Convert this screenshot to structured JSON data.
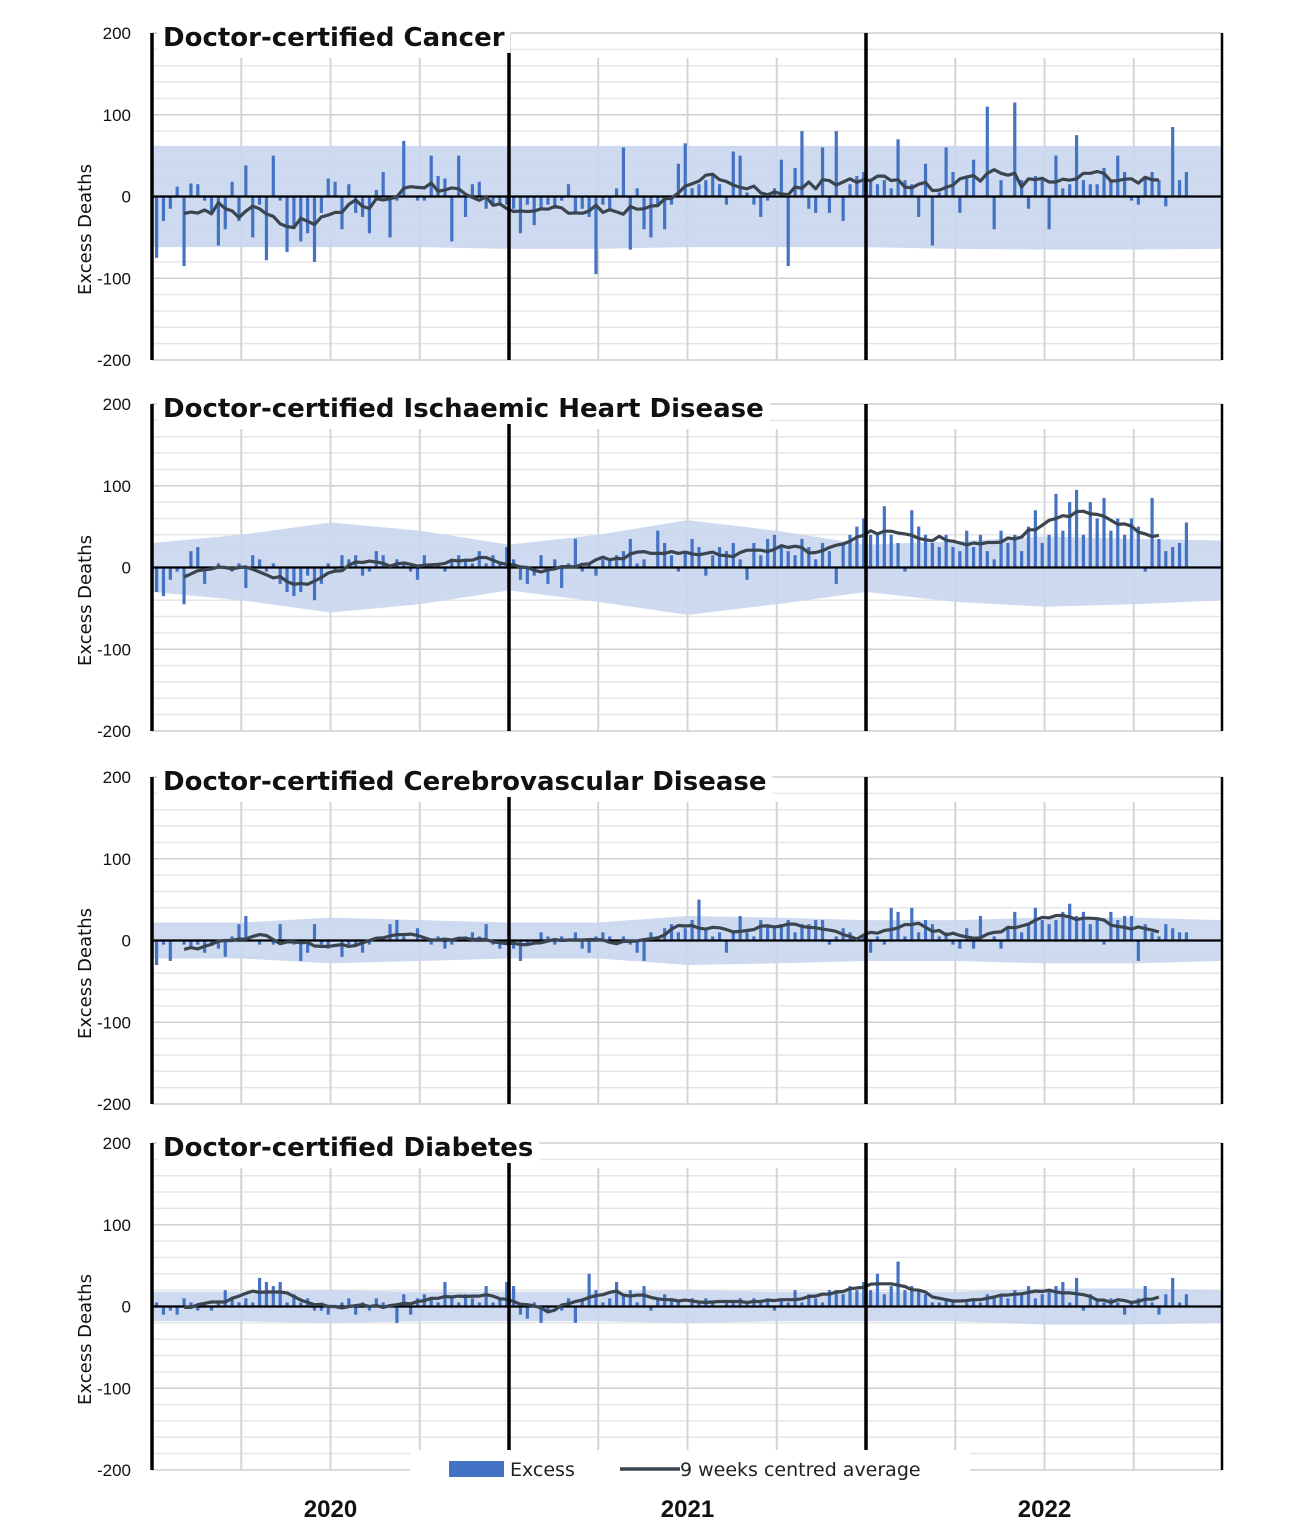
{
  "legend": {
    "excess_label": "Excess",
    "average_label": "9 weeks centred average",
    "placement": "bottom"
  },
  "colors": {
    "excess": "#4472C4",
    "average": "#3A4550",
    "band": "#C9D6EE",
    "grid": "#D9D9D9",
    "axis": "#000000"
  },
  "chart_data": [
    {
      "type": "bar",
      "title": "Doctor-certified Cancer",
      "ylabel": "Excess Deaths",
      "ylim": [
        -200,
        200
      ],
      "yticks": [
        "200",
        "100",
        "0",
        "-100",
        "-200"
      ],
      "x_tick_labels": [
        "2020",
        "2021",
        "2022"
      ],
      "grid": true,
      "series": [
        {
          "name": "Excess",
          "values_by_year": {
            "2020": [
              -75,
              -30,
              -15,
              12,
              -85,
              16,
              15,
              -5,
              -20,
              -60,
              -40,
              18,
              -30,
              38,
              -50,
              -10,
              -78,
              50,
              -5,
              -68,
              -40,
              -55,
              -45,
              -80,
              -20,
              22,
              18,
              -40,
              15,
              -20,
              -25,
              -45,
              8,
              30,
              -50,
              -5,
              68,
              0,
              -5,
              -5,
              50,
              25,
              22,
              -55,
              50,
              -25,
              15,
              18,
              -15,
              -10,
              -10,
              -10
            ],
            "2021": [
              -15,
              -45,
              -10,
              -35,
              -15,
              -10,
              -15,
              -5,
              15,
              -20,
              -15,
              -25,
              -95,
              -10,
              -15,
              10,
              60,
              -65,
              10,
              -40,
              -50,
              -10,
              -40,
              -10,
              40,
              65,
              10,
              15,
              20,
              25,
              15,
              -10,
              55,
              50,
              5,
              -10,
              -25,
              -5,
              10,
              45,
              -85,
              35,
              80,
              -15,
              -20,
              60,
              -20,
              80,
              -30,
              15,
              25,
              30
            ],
            "2022": [
              20,
              15,
              20,
              10,
              70,
              20,
              15,
              -25,
              40,
              -60,
              5,
              60,
              30,
              -20,
              25,
              45,
              0,
              110,
              -40,
              20,
              0,
              115,
              20,
              -15,
              25,
              20,
              -40,
              50,
              10,
              15,
              75,
              20,
              15,
              15,
              35,
              20,
              50,
              30,
              -5,
              -10,
              25,
              30,
              20,
              -12,
              85,
              20,
              30
            ]
          }
        }
      ],
      "average_series": "9 weeks centred average",
      "band_quarterly": {
        "upper": [
          62,
          62,
          62,
          62,
          62,
          62,
          62,
          62,
          62,
          62,
          62,
          62,
          62
        ],
        "lower": [
          -62,
          -62,
          -62,
          -62,
          -64,
          -64,
          -62,
          -62,
          -62,
          -64,
          -65,
          -65,
          -64
        ]
      }
    },
    {
      "type": "bar",
      "title": "Doctor-certified Ischaemic Heart Disease",
      "ylabel": "Excess Deaths",
      "ylim": [
        -200,
        200
      ],
      "yticks": [
        "200",
        "100",
        "0",
        "-100",
        "-200"
      ],
      "x_tick_labels": [
        "2020",
        "2021",
        "2022"
      ],
      "grid": true,
      "series": [
        {
          "name": "Excess",
          "values_by_year": {
            "2020": [
              -30,
              -35,
              -15,
              -5,
              -45,
              20,
              25,
              -20,
              0,
              5,
              0,
              -5,
              5,
              -25,
              15,
              10,
              -5,
              5,
              -20,
              -30,
              -35,
              -30,
              -10,
              -40,
              -20,
              5,
              -5,
              15,
              10,
              15,
              -10,
              -5,
              20,
              15,
              0,
              10,
              5,
              -5,
              -15,
              15,
              5,
              5,
              -5,
              10,
              15,
              10,
              5,
              20,
              5,
              15,
              5,
              25
            ],
            "2021": [
              10,
              -15,
              -20,
              -10,
              15,
              -20,
              10,
              -25,
              5,
              35,
              -5,
              5,
              -10,
              10,
              10,
              15,
              20,
              35,
              5,
              10,
              0,
              45,
              30,
              15,
              -5,
              20,
              35,
              25,
              -10,
              15,
              25,
              20,
              30,
              10,
              -15,
              30,
              15,
              35,
              40,
              25,
              20,
              15,
              35,
              25,
              10,
              30,
              20,
              -20,
              30,
              40,
              50,
              60
            ],
            "2022": [
              40,
              40,
              75,
              40,
              30,
              -5,
              70,
              50,
              40,
              30,
              25,
              40,
              25,
              20,
              45,
              25,
              40,
              20,
              10,
              45,
              30,
              40,
              20,
              50,
              70,
              30,
              40,
              90,
              45,
              80,
              95,
              40,
              80,
              60,
              85,
              45,
              60,
              40,
              60,
              50,
              -5,
              85,
              35,
              20,
              25,
              30,
              55
            ]
          }
        }
      ],
      "average_series": "9 weeks centred average",
      "band_quarterly": {
        "upper": [
          30,
          40,
          55,
          45,
          28,
          40,
          58,
          45,
          28,
          32,
          38,
          35,
          33
        ],
        "lower": [
          -30,
          -40,
          -55,
          -45,
          -28,
          -42,
          -58,
          -45,
          -30,
          -42,
          -48,
          -45,
          -40
        ]
      }
    },
    {
      "type": "bar",
      "title": "Doctor-certified Cerebrovascular Disease",
      "ylabel": "Excess Deaths",
      "ylim": [
        -200,
        200
      ],
      "yticks": [
        "200",
        "100",
        "0",
        "-100",
        "-200"
      ],
      "x_tick_labels": [
        "2020",
        "2021",
        "2022"
      ],
      "grid": true,
      "series": [
        {
          "name": "Excess",
          "values_by_year": {
            "2020": [
              -30,
              -5,
              -25,
              0,
              -5,
              -8,
              -5,
              -15,
              -5,
              -10,
              -20,
              5,
              20,
              30,
              0,
              -5,
              0,
              -5,
              20,
              0,
              -5,
              -25,
              -15,
              20,
              -5,
              -10,
              0,
              -20,
              -5,
              -5,
              -15,
              -5,
              0,
              5,
              20,
              25,
              5,
              0,
              15,
              0,
              -5,
              5,
              -10,
              -5,
              0,
              5,
              10,
              5,
              20,
              -5,
              -10,
              -5
            ],
            "2021": [
              -10,
              -25,
              -5,
              0,
              10,
              5,
              -5,
              5,
              0,
              10,
              -10,
              -15,
              5,
              10,
              5,
              0,
              5,
              -5,
              -15,
              -25,
              10,
              5,
              15,
              20,
              10,
              15,
              25,
              50,
              15,
              5,
              10,
              -15,
              10,
              30,
              10,
              5,
              25,
              20,
              15,
              20,
              25,
              10,
              20,
              20,
              25,
              25,
              -5,
              5,
              15,
              10,
              0,
              5
            ],
            "2022": [
              -15,
              5,
              -5,
              40,
              35,
              5,
              40,
              10,
              25,
              20,
              5,
              10,
              -5,
              -10,
              15,
              -10,
              30,
              0,
              5,
              -10,
              15,
              35,
              10,
              20,
              40,
              25,
              20,
              25,
              35,
              45,
              30,
              35,
              20,
              25,
              -5,
              35,
              25,
              30,
              30,
              -25,
              20,
              10,
              5,
              20,
              15,
              10,
              10
            ]
          }
        }
      ],
      "average_series": "9 weeks centred average",
      "band_quarterly": {
        "upper": [
          22,
          22,
          28,
          25,
          22,
          22,
          30,
          28,
          25,
          25,
          28,
          28,
          25
        ],
        "lower": [
          -22,
          -22,
          -28,
          -25,
          -22,
          -22,
          -30,
          -28,
          -25,
          -25,
          -28,
          -28,
          -25
        ]
      }
    },
    {
      "type": "bar",
      "title": "Doctor-certified Diabetes",
      "ylabel": "Excess Deaths",
      "ylim": [
        -200,
        200
      ],
      "yticks": [
        "200",
        "100",
        "0",
        "-100",
        "-200"
      ],
      "x_tick_labels": [
        "2020",
        "2021",
        "2022"
      ],
      "grid": true,
      "series": [
        {
          "name": "Excess",
          "values_by_year": {
            "2020": [
              5,
              -10,
              -5,
              -10,
              10,
              5,
              -5,
              5,
              -5,
              5,
              20,
              10,
              5,
              10,
              5,
              35,
              30,
              25,
              30,
              5,
              15,
              5,
              10,
              -5,
              -5,
              -10,
              0,
              5,
              10,
              -10,
              5,
              -5,
              10,
              5,
              0,
              -20,
              15,
              -10,
              10,
              15,
              10,
              5,
              30,
              10,
              5,
              15,
              10,
              5,
              25,
              5,
              10,
              30
            ],
            "2021": [
              25,
              -10,
              -15,
              5,
              -20,
              -5,
              0,
              -5,
              10,
              -20,
              10,
              40,
              20,
              5,
              10,
              30,
              15,
              20,
              5,
              25,
              -5,
              10,
              15,
              10,
              5,
              0,
              10,
              5,
              10,
              5,
              0,
              5,
              5,
              10,
              5,
              10,
              5,
              10,
              -5,
              10,
              5,
              20,
              5,
              15,
              10,
              5,
              20,
              20,
              15,
              25,
              20,
              30
            ],
            "2022": [
              20,
              40,
              15,
              25,
              55,
              20,
              25,
              20,
              15,
              5,
              5,
              10,
              5,
              0,
              5,
              10,
              5,
              15,
              10,
              15,
              10,
              20,
              15,
              25,
              10,
              15,
              20,
              25,
              30,
              5,
              35,
              -5,
              15,
              10,
              5,
              10,
              5,
              -10,
              5,
              10,
              25,
              5,
              -10,
              15,
              35,
              5,
              15
            ]
          }
        }
      ],
      "average_series": "9 weeks centred average",
      "band_quarterly": {
        "upper": [
          18,
          18,
          20,
          18,
          18,
          18,
          20,
          18,
          18,
          18,
          22,
          22,
          20
        ],
        "lower": [
          -18,
          -18,
          -20,
          -18,
          -18,
          -18,
          -20,
          -18,
          -18,
          -18,
          -22,
          -22,
          -20
        ]
      }
    }
  ]
}
